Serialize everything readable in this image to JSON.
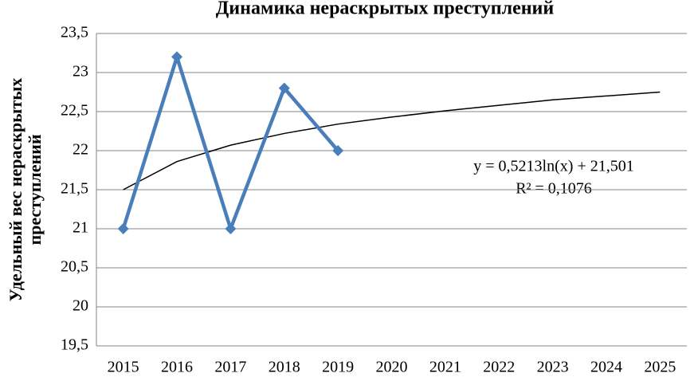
{
  "chart_data": {
    "type": "line",
    "title": "Динамика нераскрытых преступлений",
    "ylabel": [
      "Удельный вес нераскрытых",
      "преступлений"
    ],
    "categories": [
      "2015",
      "2016",
      "2017",
      "2018",
      "2019",
      "2020",
      "2021",
      "2022",
      "2023",
      "2024",
      "2025"
    ],
    "values": [
      21,
      23.2,
      21,
      22.8,
      22,
      null,
      null,
      null,
      null,
      null,
      null
    ],
    "color": "#4a7ebb",
    "trendline": {
      "values": [
        21.5,
        21.86,
        22.07,
        22.22,
        22.34,
        22.43,
        22.51,
        22.58,
        22.65,
        22.7,
        22.75
      ],
      "color": "#000000"
    },
    "annotations": [
      "y = 0,5213ln(x) + 21,501",
      "R² = 0,1076"
    ],
    "ylim": [
      19.5,
      23.5
    ],
    "yticks": [
      {
        "value": 19.5,
        "label": "19,5"
      },
      20,
      {
        "value": 20.5,
        "label": "20,5"
      },
      21,
      {
        "value": 21.5,
        "label": "21,5"
      },
      22,
      {
        "value": 22.5,
        "label": "22,5"
      },
      23,
      {
        "value": 23.5,
        "label": "23,5"
      }
    ],
    "grid": true
  }
}
